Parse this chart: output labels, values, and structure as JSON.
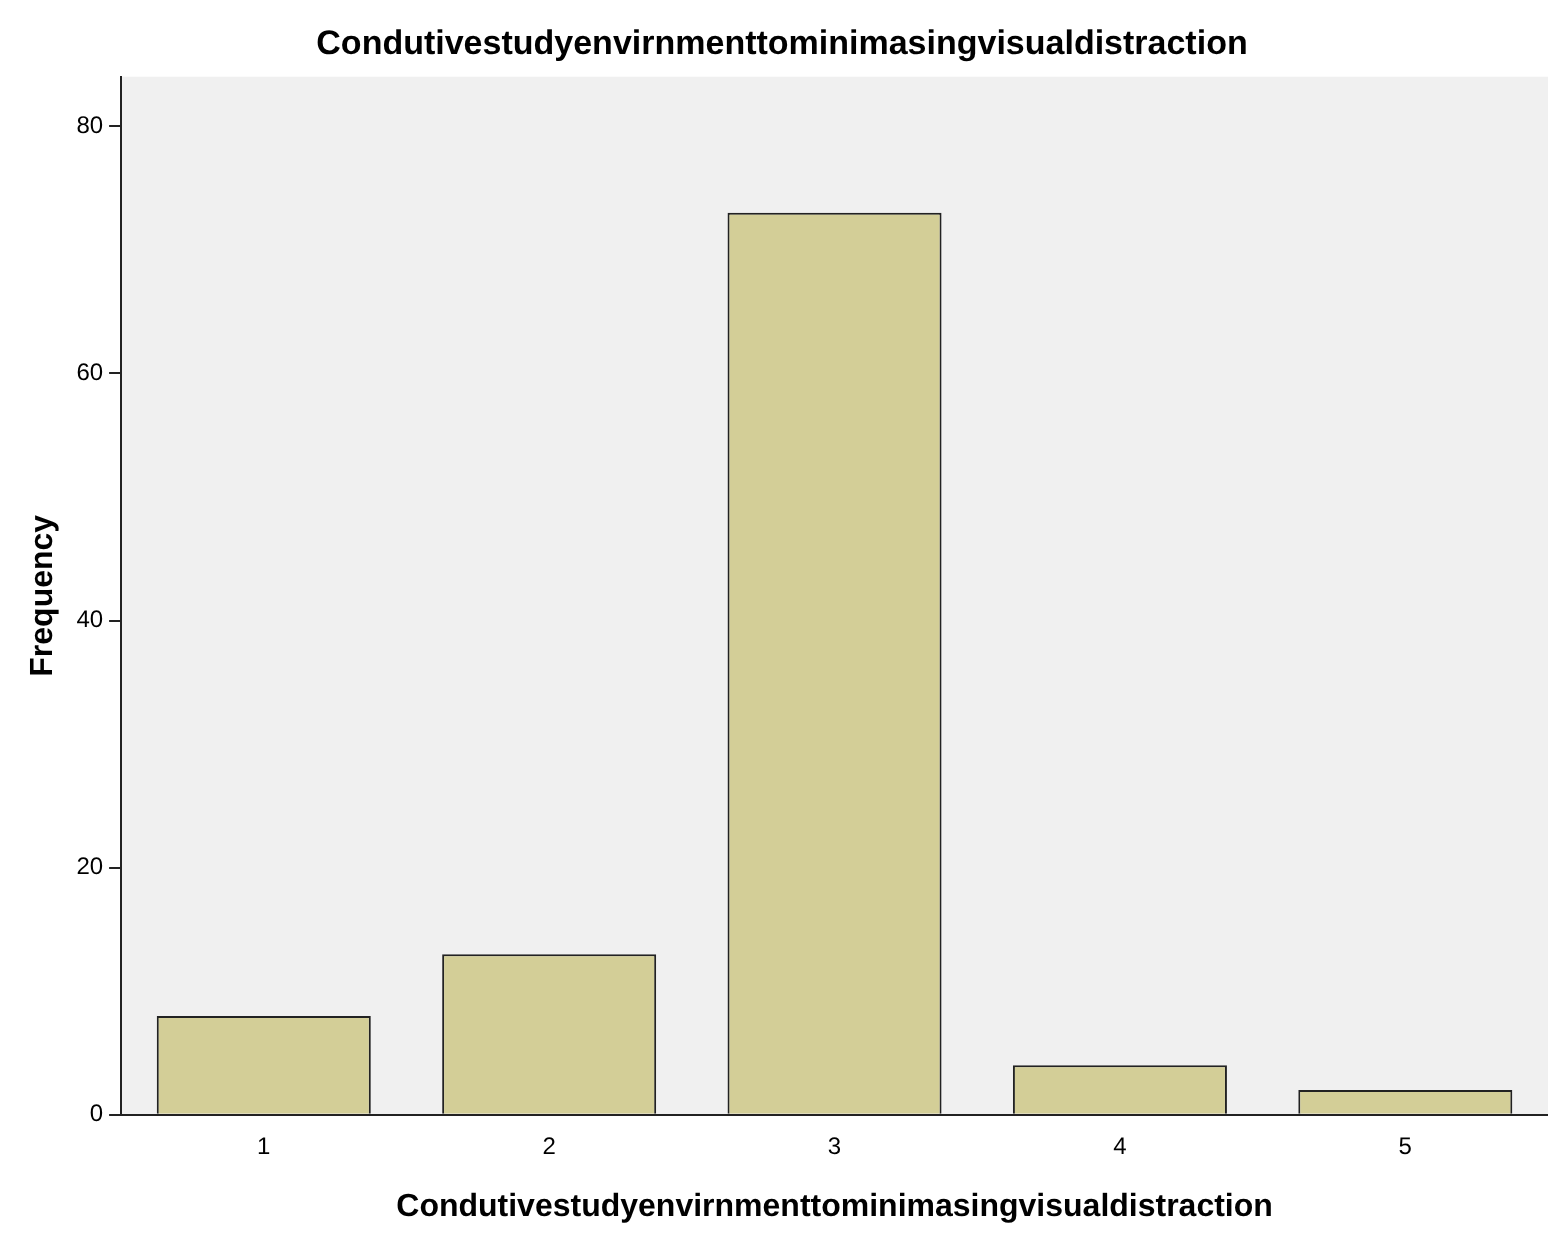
{
  "chart_data": {
    "type": "bar",
    "title": "Condutivestudyenvirnmenttominimasingvisualdistraction",
    "xlabel": "Condutivestudyenvirnmenttominimasingvisualdistraction",
    "ylabel": "Frequency",
    "categories": [
      "1",
      "2",
      "3",
      "4",
      "5"
    ],
    "values": [
      8,
      13,
      73,
      4,
      2
    ],
    "color": "#d3ce97",
    "ylim": [
      0,
      84
    ],
    "yticks": [
      0,
      20,
      40,
      60,
      80
    ],
    "grid": false,
    "legend": false
  }
}
